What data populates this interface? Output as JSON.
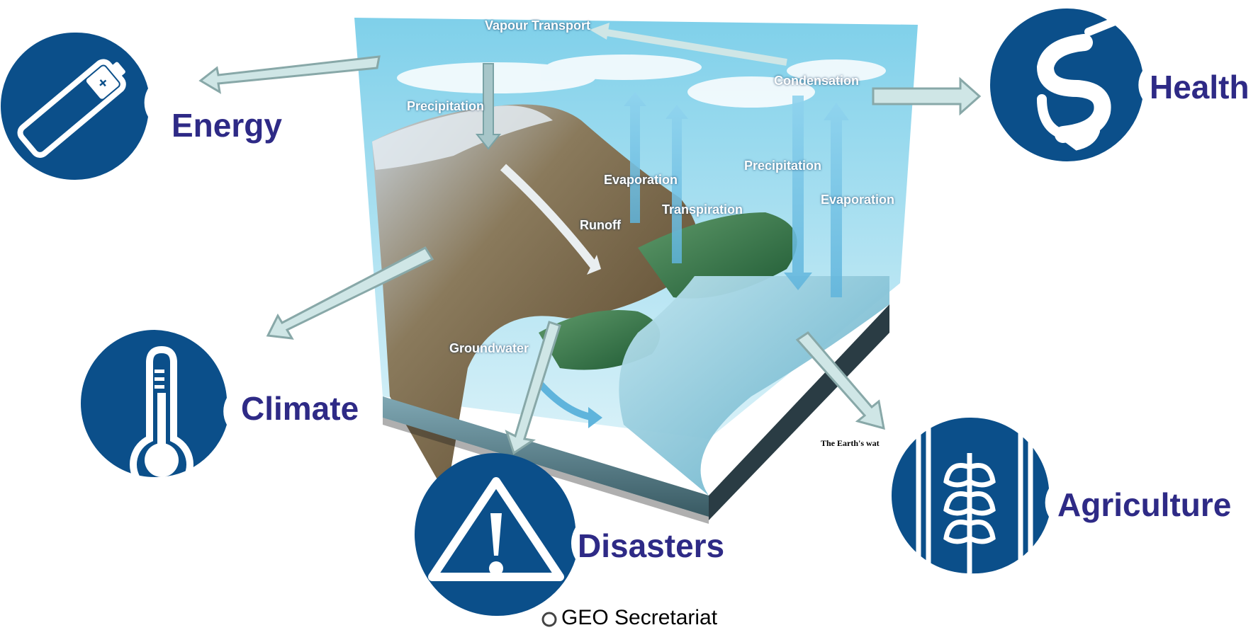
{
  "sectors": {
    "energy": "Energy",
    "health": "Health",
    "climate": "Climate",
    "disasters": "Disasters",
    "agriculture": "Agriculture"
  },
  "water_cycle": {
    "vapour_transport": "Vapour Transport",
    "condensation": "Condensation",
    "precipitation_left": "Precipitation",
    "precipitation_right": "Precipitation",
    "evaporation_center": "Evaporation",
    "evaporation_right": "Evaporation",
    "transpiration": "Transpiration",
    "runoff": "Runoff",
    "groundwater": "Groundwater",
    "caption": "The Earth's wat"
  },
  "footer": {
    "text": "GEO Secretariat"
  },
  "colors": {
    "icon_blue": "#0b4f8a",
    "label_purple": "#2e2a86",
    "arrow_fill": "#cfe6e6",
    "arrow_stroke": "#88a8a8"
  },
  "icons": [
    "battery-icon",
    "caduceus-icon",
    "thermometer-icon",
    "warning-icon",
    "wheat-icon"
  ]
}
